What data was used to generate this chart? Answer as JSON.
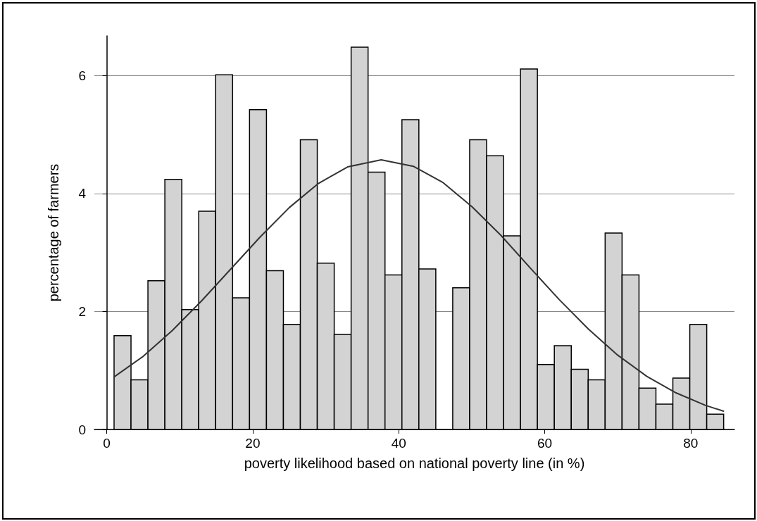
{
  "chart_data": {
    "type": "histogram",
    "xlabel": "poverty likelihood based on national poverty line (in %)",
    "ylabel": "percentage of farmers",
    "bins": [
      1,
      3.32,
      5.64,
      7.96,
      10.28,
      12.6,
      14.92,
      17.24,
      19.56,
      21.88,
      24.2,
      26.52,
      28.84,
      31.16,
      33.48,
      35.8,
      38.12,
      40.44,
      42.76,
      45.08,
      47.4,
      49.72,
      52.04,
      54.36,
      56.68,
      59,
      61.32,
      63.64,
      65.96,
      68.28,
      70.6,
      72.92,
      75.24,
      77.56,
      79.88,
      82.2,
      84.52
    ],
    "values": [
      1.59,
      0.84,
      2.52,
      4.24,
      2.03,
      3.7,
      6.01,
      2.23,
      5.42,
      2.69,
      1.78,
      4.91,
      2.82,
      1.61,
      6.48,
      4.36,
      2.62,
      5.25,
      2.72,
      0,
      2.4,
      4.91,
      4.64,
      3.28,
      6.11,
      1.1,
      1.42,
      1.02,
      0.84,
      3.33,
      2.62,
      0.7,
      0.43,
      0.87,
      1.78,
      0.26
    ],
    "color": "#d3d3d3",
    "series": [
      {
        "type": "line",
        "color": "#333333",
        "x": [
          1,
          5,
          9,
          13,
          17,
          21,
          25,
          29,
          33,
          37.6,
          42,
          46,
          50,
          54,
          58,
          62,
          66,
          70,
          74,
          78,
          82,
          84.5
        ],
        "values": [
          0.89,
          1.24,
          1.68,
          2.18,
          2.72,
          3.26,
          3.76,
          4.17,
          4.45,
          4.57,
          4.46,
          4.19,
          3.78,
          3.29,
          2.74,
          2.2,
          1.7,
          1.26,
          0.9,
          0.62,
          0.41,
          0.31
        ]
      }
    ],
    "xlim": [
      -1.7,
      86
    ],
    "xticks": [
      0,
      20,
      40,
      60,
      80
    ],
    "ylim": [
      0,
      6.67
    ],
    "yticks": [
      0,
      2,
      4,
      6
    ],
    "grid": "y",
    "marker": "none"
  }
}
